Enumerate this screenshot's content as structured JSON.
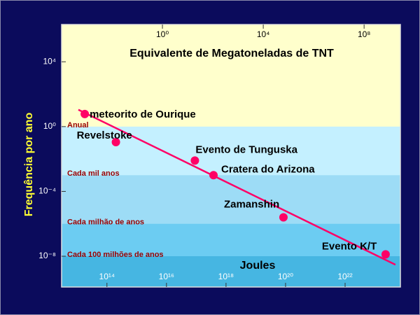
{
  "chart_data": {
    "type": "scatter",
    "x_title": "Joules",
    "x2_title": "Equivalente de Megatoneladas de TNT",
    "y_title": "Frequência por ano",
    "log_x": true,
    "log_y": true,
    "xlim": [
      3000000000000.0,
      7.2e+23
    ],
    "x2lim": [
      0.0001,
      2750000000.0
    ],
    "ylim": [
      1.26e-10,
      2000000.0
    ],
    "xticks": [
      {
        "value": 100000000000000.0,
        "label": "10¹⁴"
      },
      {
        "value": 1e+16,
        "label": "10¹⁶"
      },
      {
        "value": 1e+18,
        "label": "10¹⁸"
      },
      {
        "value": 1e+20,
        "label": "10²⁰"
      },
      {
        "value": 1e+22,
        "label": "10²²"
      }
    ],
    "x2ticks": [
      {
        "value": 1,
        "label": "10⁰"
      },
      {
        "value": 10000.0,
        "label": "10⁴"
      },
      {
        "value": 100000000.0,
        "label": "10⁸"
      }
    ],
    "yticks": [
      {
        "value": 10000.0,
        "label": "10⁴"
      },
      {
        "value": 1,
        "label": "10⁰"
      },
      {
        "value": 0.0001,
        "label": "10⁻⁴"
      },
      {
        "value": 1e-08,
        "label": "10⁻⁸"
      }
    ],
    "bands": [
      {
        "label": "Anual",
        "upper": 1,
        "color": "#c4f0ff"
      },
      {
        "label": "Cada mil anos",
        "upper": 0.001,
        "color": "#9ddcf6"
      },
      {
        "label": "Cada milhão de anos",
        "upper": 1e-06,
        "color": "#6cccf2"
      },
      {
        "label": "Cada 100 milhões de anos",
        "upper": 1e-08,
        "color": "#46b6e2"
      }
    ],
    "series": [
      {
        "color": "#ff0066",
        "labels": [
          "meteorito de Ourique",
          "Revelstoke",
          "Evento de Tunguska",
          "Cratera do Arizona",
          "Zamanshin",
          "Evento  K/T"
        ],
        "x": [
          18000000000000.0,
          200000000000000.0,
          9e+16,
          3.8e+17,
          8.5e+19,
          2.3e+23
        ],
        "values": [
          6,
          0.11,
          0.008,
          0.001,
          2.5e-06,
          1.3e-08
        ]
      }
    ],
    "fit_line": {
      "color": "#ff0066",
      "x": [
        11000000000000.0,
        4.9e+23
      ],
      "values": [
        11,
        3e-09
      ]
    }
  }
}
